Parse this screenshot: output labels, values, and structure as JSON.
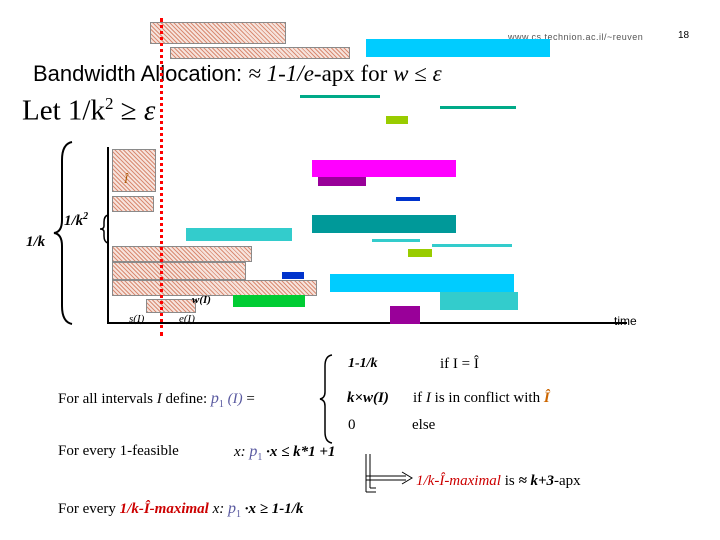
{
  "header": {
    "url": "www.cs.technion.ac.il/~reuven",
    "page_number": "18"
  },
  "title": {
    "line1_prefix": "Bandwidth Allocation: ",
    "line1_approx": "≈ 1-1/e",
    "line1_suffix": "-apx for ",
    "line1_w": "w",
    "line1_leq": " ≤ ",
    "line1_eps": "ε",
    "line2_text": "Let 1/k",
    "line2_sup": "2",
    "line2_rel": " ≥ ",
    "line2_eps": "ε"
  },
  "diagram": {
    "label_1k": "1/k",
    "label_1k2": "1/k",
    "label_1k2_sup": "2",
    "label_Ihat": "Î",
    "label_wI": "w(I)",
    "label_sI": "s(I)",
    "label_eI": "e(I)",
    "label_time": "time",
    "colors": {
      "magenta": "#ff00ff",
      "purple": "#990099",
      "blue": "#0033cc",
      "teal": "#009999",
      "aqua": "#33cccc",
      "green": "#00cc33",
      "lime": "#99cc00",
      "cyan": "#00ccff",
      "hatch": "#d98c74",
      "red_dotted": "#ff0000"
    }
  },
  "definition": {
    "intro_prefix": "For all intervals ",
    "intro_I": "I",
    "intro_mid": " define: ",
    "intro_p": "p",
    "intro_p_sub": "1",
    "intro_arg": " (I)",
    "intro_eq": " =",
    "case1_value": "1-1/k",
    "case1_cond": "if I = Î",
    "case2_value": "k×w(I)",
    "case2_cond_prefix": "if ",
    "case2_cond_I": "I",
    "case2_cond_mid": " is in conflict with ",
    "case2_cond_hat": "Î",
    "case3_value": "0",
    "case3_cond": "else"
  },
  "statements": {
    "feasible_prefix": "For every 1-feasible",
    "feasible_x": "x: ",
    "feasible_p": "p",
    "feasible_p_sub": "1",
    "feasible_rest": " ·x  ≤ k*1 +1",
    "maximal_prefix": "For every ",
    "maximal_em": "1/k-Î-maximal",
    "maximal_x": "  x: ",
    "maximal_p": "p",
    "maximal_p_sub": "1",
    "maximal_rest": " ·x  ≥ 1-1/k",
    "conclusion_em": "1/k-Î-maximal",
    "conclusion_mid": " is ",
    "conclusion_approx": "≈ k+3",
    "conclusion_suffix": "-apx"
  }
}
